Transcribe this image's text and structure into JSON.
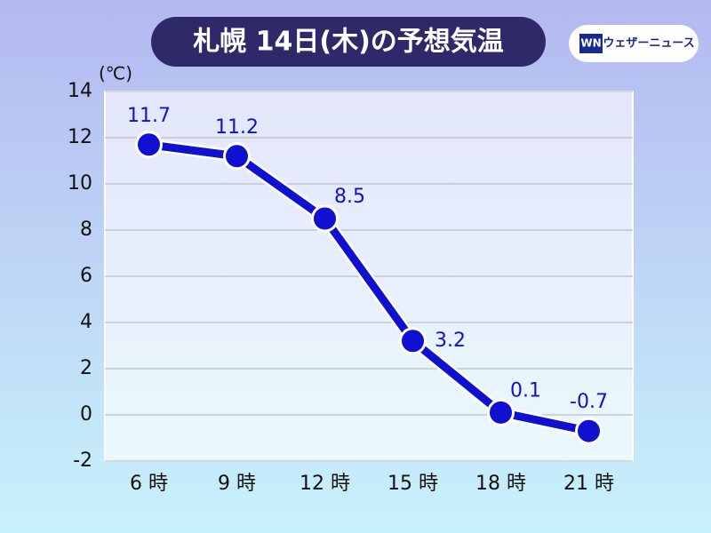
{
  "chart_data": {
    "type": "line",
    "title": "札幌 14日(木)の予想気温",
    "y_unit": "(℃)",
    "categories": [
      "6 時",
      "9 時",
      "12 時",
      "15 時",
      "18 時",
      "21 時"
    ],
    "values": [
      11.7,
      11.2,
      8.5,
      3.2,
      0.1,
      -0.7
    ],
    "color": "#1010d0",
    "ylim": [
      -2,
      14
    ],
    "yticks": [
      -2,
      0,
      2,
      4,
      6,
      8,
      10,
      12,
      14
    ],
    "grid": true
  },
  "logo": {
    "mark": "WN",
    "text": "ウェザーニュース"
  }
}
